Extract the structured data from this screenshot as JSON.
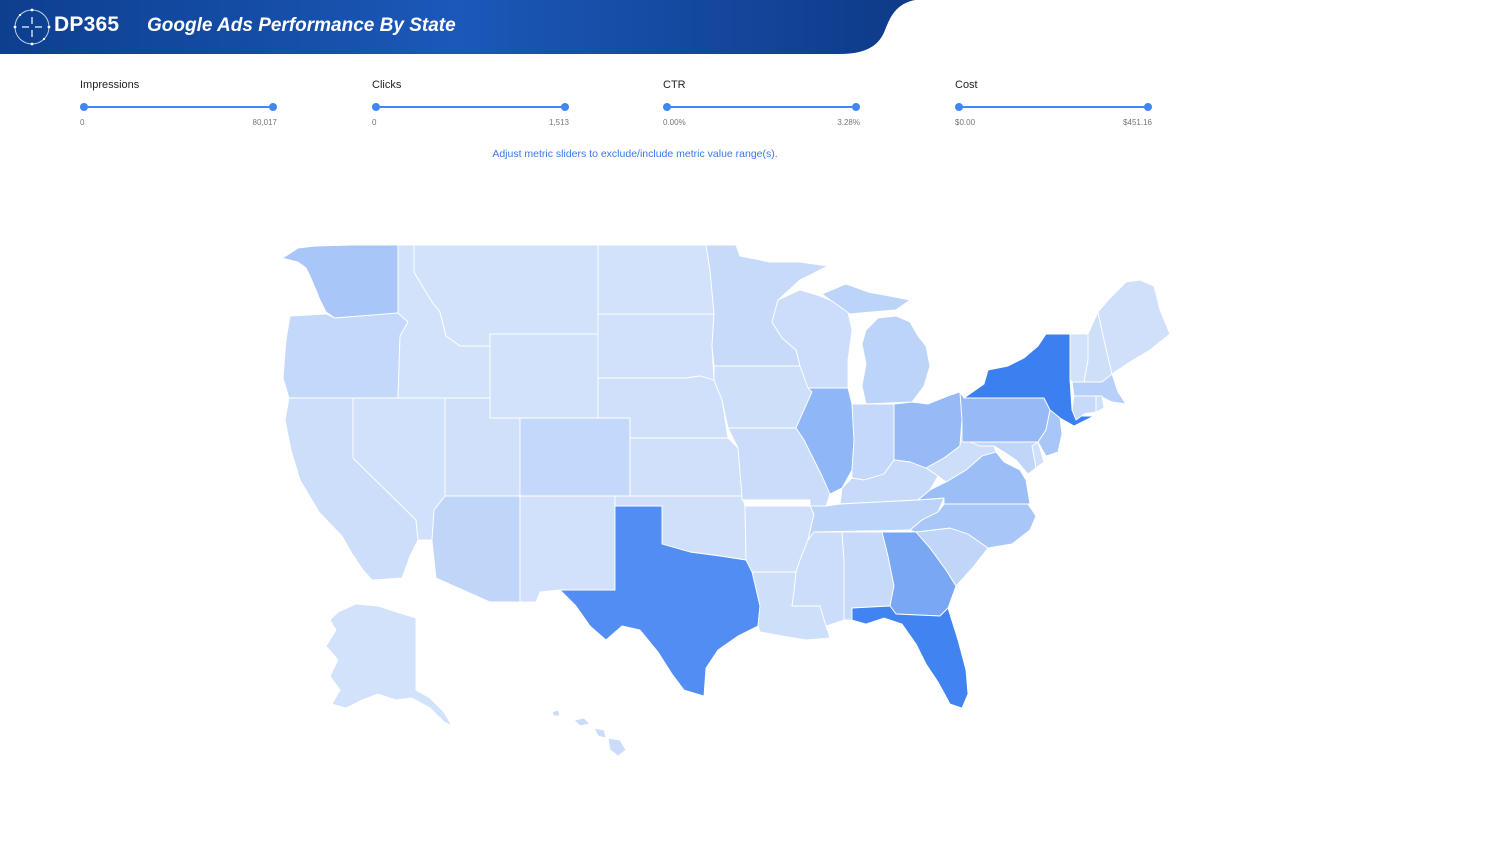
{
  "header": {
    "logo_text": "DP365",
    "title": "Google Ads Performance By State"
  },
  "filters": [
    {
      "label": "Impressions",
      "min": "0",
      "max": "80,017"
    },
    {
      "label": "Clicks",
      "min": "0",
      "max": "1,513"
    },
    {
      "label": "CTR",
      "min": "0.00%",
      "max": "3.28%"
    },
    {
      "label": "Cost",
      "min": "$0.00",
      "max": "$451.16"
    }
  ],
  "hint": "Adjust metric sliders to exclude/include metric value range(s).",
  "colors": {
    "header_dark": "#0d3f8f",
    "header_light": "#1f5fbf",
    "accent": "#4285f4",
    "scale_low": "#d6e4fb",
    "scale_high": "#3b7ff0"
  },
  "map_data": {
    "type": "choropleth",
    "region": "US states",
    "intensity_scale": "relative 0 (lowest) to 1 (highest) shading",
    "states": [
      {
        "id": "WA",
        "v": 0.3
      },
      {
        "id": "OR",
        "v": 0.12
      },
      {
        "id": "CA",
        "v": 0.06
      },
      {
        "id": "NV",
        "v": 0.03
      },
      {
        "id": "ID",
        "v": 0.02
      },
      {
        "id": "MT",
        "v": 0.02
      },
      {
        "id": "WY",
        "v": 0.02
      },
      {
        "id": "UT",
        "v": 0.04
      },
      {
        "id": "AZ",
        "v": 0.14
      },
      {
        "id": "CO",
        "v": 0.12
      },
      {
        "id": "NM",
        "v": 0.03
      },
      {
        "id": "ND",
        "v": 0.02
      },
      {
        "id": "SD",
        "v": 0.03
      },
      {
        "id": "NE",
        "v": 0.04
      },
      {
        "id": "KS",
        "v": 0.04
      },
      {
        "id": "OK",
        "v": 0.04
      },
      {
        "id": "TX",
        "v": 0.86
      },
      {
        "id": "MN",
        "v": 0.1
      },
      {
        "id": "IA",
        "v": 0.05
      },
      {
        "id": "MO",
        "v": 0.08
      },
      {
        "id": "AR",
        "v": 0.04
      },
      {
        "id": "LA",
        "v": 0.05
      },
      {
        "id": "WI",
        "v": 0.07
      },
      {
        "id": "IL",
        "v": 0.46
      },
      {
        "id": "MI",
        "v": 0.16
      },
      {
        "id": "IN",
        "v": 0.12
      },
      {
        "id": "OH",
        "v": 0.42
      },
      {
        "id": "KY",
        "v": 0.1
      },
      {
        "id": "TN",
        "v": 0.16
      },
      {
        "id": "MS",
        "v": 0.07
      },
      {
        "id": "AL",
        "v": 0.1
      },
      {
        "id": "GA",
        "v": 0.6
      },
      {
        "id": "FL",
        "v": 0.96
      },
      {
        "id": "SC",
        "v": 0.14
      },
      {
        "id": "NC",
        "v": 0.3
      },
      {
        "id": "VA",
        "v": 0.38
      },
      {
        "id": "WV",
        "v": 0.06
      },
      {
        "id": "PA",
        "v": 0.42
      },
      {
        "id": "NY",
        "v": 1.0
      },
      {
        "id": "VT",
        "v": 0.02
      },
      {
        "id": "NH",
        "v": 0.05
      },
      {
        "id": "ME",
        "v": 0.04
      },
      {
        "id": "MA",
        "v": 0.2
      },
      {
        "id": "CT",
        "v": 0.1
      },
      {
        "id": "RI",
        "v": 0.05
      },
      {
        "id": "NJ",
        "v": 0.3
      },
      {
        "id": "DE",
        "v": 0.04
      },
      {
        "id": "MD",
        "v": 0.14
      },
      {
        "id": "AK",
        "v": 0.02
      },
      {
        "id": "HI",
        "v": 0.08
      }
    ]
  }
}
